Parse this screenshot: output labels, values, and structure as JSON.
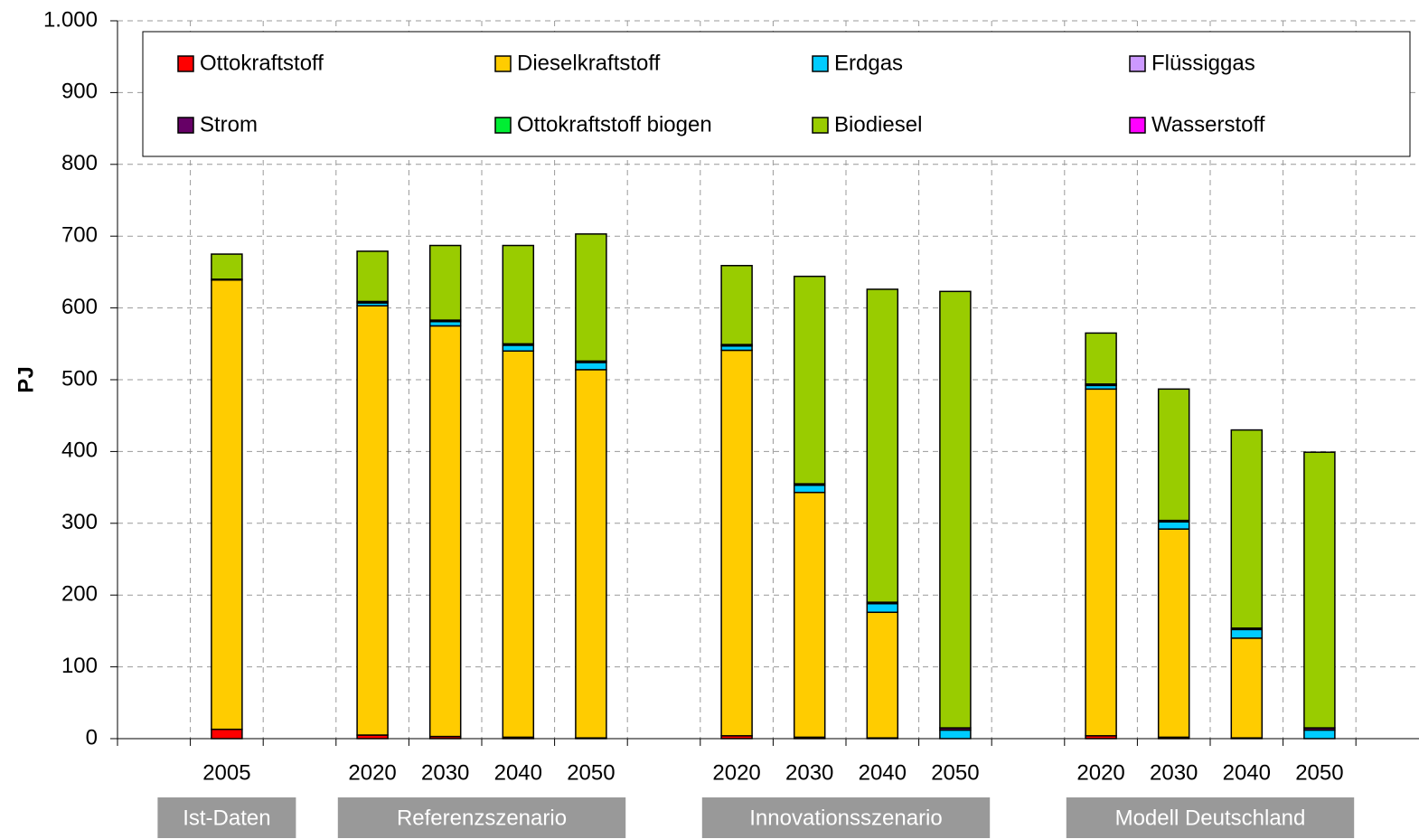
{
  "chart_data": {
    "type": "stacked_bar",
    "ylabel": "PJ",
    "categories": [
      null,
      "2005",
      null,
      "2020",
      "2030",
      "2040",
      "2050",
      null,
      "2020",
      "2030",
      "2040",
      "2050",
      null,
      "2020",
      "2030",
      "2040",
      "2050",
      null
    ],
    "groups": [
      {
        "name": "Ist-Daten",
        "first": 1,
        "last": 1
      },
      {
        "name": "Referenzszenario",
        "first": 3,
        "last": 6
      },
      {
        "name": "Innovationsszenario",
        "first": 8,
        "last": 11
      },
      {
        "name": "Modell Deutschland",
        "first": 13,
        "last": 16
      }
    ],
    "series": [
      {
        "name": "Ottokraftstoff",
        "color": "#ff0000",
        "values": [
          null,
          13,
          null,
          5,
          3,
          2,
          1,
          null,
          4,
          2,
          1,
          0,
          null,
          4,
          2,
          1,
          0,
          null
        ]
      },
      {
        "name": "Dieselkraftstoff",
        "color": "#ffcc00",
        "values": [
          null,
          626,
          null,
          598,
          572,
          538,
          513,
          null,
          537,
          341,
          175,
          0,
          null,
          483,
          290,
          139,
          0,
          null
        ]
      },
      {
        "name": "Erdgas",
        "color": "#00ccff",
        "values": [
          null,
          1,
          null,
          4,
          6,
          8,
          10,
          null,
          6,
          10,
          12,
          12,
          null,
          5,
          10,
          12,
          12,
          null
        ]
      },
      {
        "name": "Flüssiggas",
        "color": "#cc99ff",
        "values": [
          null,
          0,
          null,
          0,
          0,
          0,
          0,
          null,
          0,
          0,
          0,
          0,
          null,
          0,
          0,
          0,
          0,
          null
        ]
      },
      {
        "name": "Strom",
        "color": "#660066",
        "values": [
          null,
          0,
          null,
          2,
          2,
          2,
          2,
          null,
          2,
          2,
          2,
          3,
          null,
          2,
          2,
          2,
          3,
          null
        ]
      },
      {
        "name": "Ottokraftstoff biogen",
        "color": "#00ee33",
        "values": [
          null,
          0,
          null,
          0,
          0,
          0,
          0,
          null,
          0,
          0,
          0,
          0,
          null,
          0,
          0,
          0,
          0,
          null
        ]
      },
      {
        "name": "Biodiesel",
        "color": "#99cc00",
        "values": [
          null,
          35,
          null,
          70,
          104,
          137,
          177,
          null,
          110,
          289,
          436,
          608,
          null,
          71,
          183,
          276,
          384,
          null
        ]
      },
      {
        "name": "Wasserstoff",
        "color": "#ff00ff",
        "values": [
          null,
          0,
          null,
          0,
          0,
          0,
          0,
          null,
          0,
          0,
          0,
          0,
          null,
          0,
          0,
          0,
          0,
          null
        ]
      }
    ],
    "ylim": [
      0,
      1000
    ],
    "yticks": [
      0,
      100,
      200,
      300,
      400,
      500,
      600,
      700,
      800,
      900,
      {
        "value": 1000,
        "label": "1.000"
      }
    ],
    "grid": true
  }
}
